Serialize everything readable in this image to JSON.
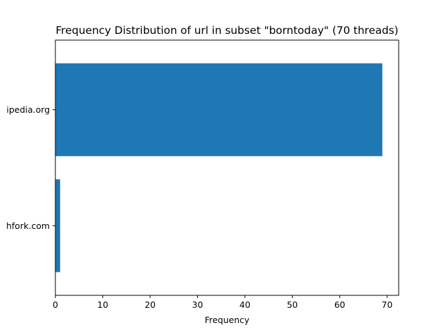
{
  "chart_data": {
    "type": "bar",
    "orientation": "horizontal",
    "title": "Frequency Distribution of url in subset \"borntoday\" (70 threads)",
    "xlabel": "Frequency",
    "ylabel": "",
    "categories": [
      "hfork.com",
      "ipedia.org"
    ],
    "values": [
      1,
      69
    ],
    "xlim": [
      0,
      72.45
    ],
    "xticks": [
      0,
      10,
      20,
      30,
      40,
      50,
      60,
      70
    ],
    "grid": false,
    "bar_color": "#1f77b4"
  }
}
